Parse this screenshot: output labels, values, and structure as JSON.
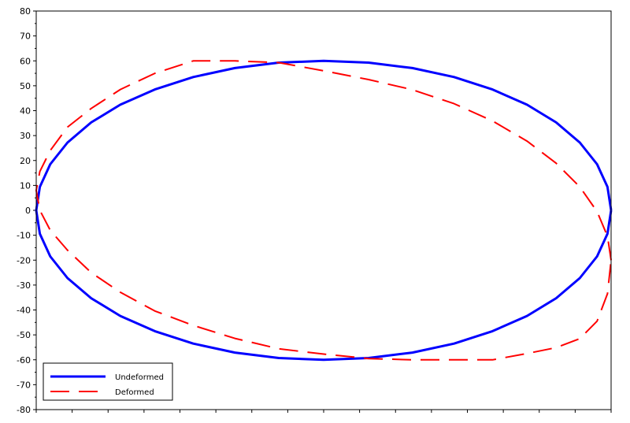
{
  "chart_data": {
    "type": "line",
    "title": "",
    "xlabel": "",
    "ylabel": "",
    "xlim": [
      -80,
      80
    ],
    "ylim": [
      -80,
      80
    ],
    "yticks": [
      -80,
      -70,
      -60,
      -50,
      -40,
      -30,
      -20,
      -10,
      0,
      10,
      20,
      30,
      40,
      50,
      60,
      70,
      80
    ],
    "grid": false,
    "legend_position": "bottom-left",
    "series": [
      {
        "name": "Undeformed",
        "color": "#0000ff",
        "style": "solid",
        "x": [
          80.0,
          79.0,
          76.1,
          71.3,
          64.7,
          56.6,
          47.0,
          36.3,
          24.7,
          12.5,
          0.0,
          -12.5,
          -24.7,
          -36.3,
          -47.0,
          -56.6,
          -64.7,
          -71.3,
          -76.1,
          -79.0,
          -80.0,
          -79.0,
          -76.1,
          -71.3,
          -64.7,
          -56.6,
          -47.0,
          -36.3,
          -24.7,
          -12.5,
          0.0,
          12.5,
          24.7,
          36.3,
          47.0,
          56.6,
          64.7,
          71.3,
          76.1,
          79.0,
          80.0
        ],
        "y": [
          0.0,
          9.4,
          18.5,
          27.2,
          35.3,
          42.4,
          48.5,
          53.5,
          57.1,
          59.3,
          60.0,
          59.3,
          57.1,
          53.5,
          48.5,
          42.4,
          35.3,
          27.2,
          18.5,
          9.4,
          0.0,
          -9.4,
          -18.5,
          -27.2,
          -35.3,
          -42.4,
          -48.5,
          -53.5,
          -57.1,
          -59.3,
          -60.0,
          -59.3,
          -57.1,
          -53.5,
          -48.5,
          -42.4,
          -35.3,
          -27.2,
          -18.5,
          -9.4,
          0.0
        ]
      },
      {
        "name": "Deformed",
        "color": "#ff0000",
        "style": "dashed",
        "x": [
          80.0,
          79.0,
          76.1,
          71.3,
          64.7,
          56.6,
          47.0,
          36.3,
          24.7,
          12.5,
          0.0,
          -12.5,
          -24.7,
          -36.3,
          -47.0,
          -56.6,
          -64.7,
          -71.3,
          -76.1,
          -79.0,
          -80.0,
          -79.0,
          -76.1,
          -71.3,
          -64.7,
          -56.6,
          -47.0,
          -36.3,
          -24.7,
          -12.5,
          0.0,
          12.5,
          24.7,
          36.3,
          47.0,
          56.6,
          64.7,
          71.3,
          76.1,
          79.0,
          80.0
        ],
        "y": [
          -20.0,
          -10.4,
          -0.5,
          9.4,
          18.9,
          27.8,
          35.9,
          42.8,
          48.4,
          52.5,
          56.0,
          59.3,
          60.0,
          60.0,
          55.0,
          48.5,
          40.9,
          33.4,
          24.0,
          15.6,
          8.0,
          0.0,
          -8.0,
          -16.0,
          -25.0,
          -32.9,
          -40.4,
          -46.2,
          -51.4,
          -55.6,
          -57.7,
          -59.5,
          -60.0,
          -60.0,
          -60.0,
          -57.5,
          -55.1,
          -51.5,
          -44.5,
          -33.5,
          -20.0
        ]
      }
    ]
  }
}
